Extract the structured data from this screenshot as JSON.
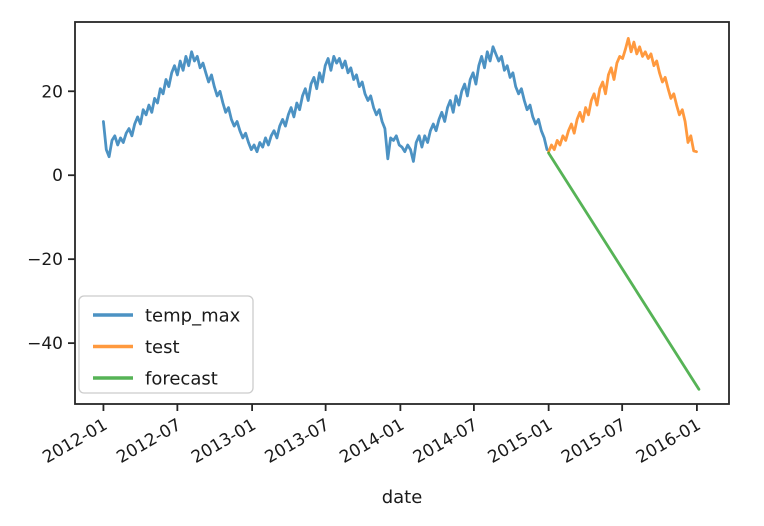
{
  "figure": {
    "background": "#ffffff",
    "axes_color": "#262626",
    "text_color": "#1a1a1a"
  },
  "chart_data": {
    "type": "line",
    "title": "",
    "xlabel": "date",
    "ylabel": "",
    "grid": false,
    "x_unit": "days since 2012-01-01",
    "xlim": [
      -70,
      1540
    ],
    "ylim": [
      -54.5,
      36.5
    ],
    "line_alpha": 0.8,
    "x_ticks": [
      {
        "value": 0,
        "label": "2012-01"
      },
      {
        "value": 182,
        "label": "2012-07"
      },
      {
        "value": 366,
        "label": "2013-01"
      },
      {
        "value": 547,
        "label": "2013-07"
      },
      {
        "value": 731,
        "label": "2014-01"
      },
      {
        "value": 912,
        "label": "2014-07"
      },
      {
        "value": 1096,
        "label": "2015-01"
      },
      {
        "value": 1277,
        "label": "2015-07"
      },
      {
        "value": 1461,
        "label": "2016-01"
      }
    ],
    "y_ticks": [
      {
        "value": 20,
        "label": "20"
      },
      {
        "value": 0,
        "label": "0"
      },
      {
        "value": -20,
        "label": "−20"
      },
      {
        "value": -40,
        "label": "−40"
      }
    ],
    "legend": {
      "position": "lower left",
      "entries": [
        {
          "label": "temp_max",
          "color": "#1f77b4"
        },
        {
          "label": "test",
          "color": "#ff7f0e"
        },
        {
          "label": "forecast",
          "color": "#2ca02c"
        }
      ]
    },
    "series": [
      {
        "name": "temp_max",
        "color": "#1f77b4",
        "x": [
          0,
          7,
          14,
          21,
          28,
          35,
          42,
          49,
          56,
          63,
          70,
          77,
          84,
          91,
          98,
          105,
          112,
          119,
          126,
          133,
          140,
          147,
          154,
          161,
          168,
          175,
          182,
          189,
          196,
          203,
          210,
          217,
          224,
          231,
          238,
          245,
          252,
          259,
          266,
          273,
          280,
          287,
          294,
          301,
          308,
          315,
          322,
          329,
          336,
          343,
          350,
          357,
          364,
          371,
          378,
          385,
          392,
          399,
          406,
          413,
          420,
          427,
          434,
          441,
          448,
          455,
          462,
          469,
          476,
          483,
          490,
          497,
          504,
          511,
          518,
          525,
          532,
          539,
          546,
          553,
          560,
          567,
          574,
          581,
          588,
          595,
          602,
          609,
          616,
          623,
          630,
          637,
          644,
          651,
          658,
          665,
          672,
          679,
          686,
          693,
          700,
          707,
          714,
          721,
          728,
          735,
          742,
          749,
          756,
          763,
          770,
          777,
          784,
          791,
          798,
          805,
          812,
          819,
          826,
          833,
          840,
          847,
          854,
          861,
          868,
          875,
          882,
          889,
          896,
          903,
          910,
          917,
          924,
          931,
          938,
          945,
          952,
          959,
          966,
          973,
          980,
          987,
          994,
          1001,
          1008,
          1015,
          1022,
          1029,
          1036,
          1043,
          1050,
          1057,
          1064,
          1071,
          1078,
          1085,
          1092
        ],
        "y": [
          12.8,
          6.1,
          4.4,
          8.3,
          9.4,
          7.2,
          8.9,
          7.8,
          10.0,
          11.1,
          9.4,
          12.2,
          13.9,
          12.2,
          15.6,
          14.4,
          16.7,
          15.0,
          18.3,
          17.2,
          20.6,
          19.4,
          22.8,
          21.1,
          24.4,
          26.1,
          23.9,
          27.2,
          25.0,
          28.3,
          26.1,
          29.4,
          27.2,
          28.3,
          25.6,
          26.7,
          24.4,
          22.2,
          23.9,
          21.1,
          18.9,
          20.0,
          17.2,
          15.0,
          16.1,
          13.3,
          11.7,
          12.8,
          10.6,
          8.9,
          10.0,
          7.8,
          6.1,
          7.2,
          5.6,
          7.8,
          6.7,
          8.9,
          7.2,
          9.4,
          10.6,
          8.9,
          11.7,
          13.3,
          11.7,
          14.4,
          16.1,
          13.9,
          17.2,
          15.6,
          18.9,
          20.6,
          17.8,
          21.7,
          23.3,
          20.6,
          24.4,
          22.2,
          26.1,
          27.8,
          25.0,
          28.3,
          26.7,
          27.8,
          25.6,
          27.2,
          24.4,
          25.6,
          22.8,
          23.9,
          21.1,
          22.2,
          19.4,
          17.8,
          18.9,
          16.1,
          14.4,
          15.6,
          12.8,
          11.1,
          3.9,
          8.9,
          8.3,
          9.4,
          7.2,
          6.7,
          5.6,
          7.2,
          6.1,
          3.3,
          7.8,
          9.4,
          6.7,
          9.4,
          7.8,
          10.6,
          12.2,
          10.6,
          13.3,
          15.0,
          12.8,
          16.1,
          17.8,
          15.0,
          18.9,
          16.7,
          20.0,
          21.7,
          18.9,
          22.8,
          24.4,
          21.7,
          26.1,
          28.3,
          25.6,
          29.4,
          27.2,
          30.6,
          28.9,
          27.2,
          28.3,
          25.0,
          26.1,
          23.3,
          24.4,
          21.1,
          19.4,
          20.6,
          17.8,
          15.6,
          16.7,
          13.9,
          12.2,
          13.3,
          10.6,
          8.9,
          6.1
        ]
      },
      {
        "name": "test",
        "color": "#ff7f0e",
        "x": [
          1096,
          1103,
          1110,
          1117,
          1124,
          1131,
          1138,
          1145,
          1152,
          1159,
          1166,
          1173,
          1180,
          1187,
          1194,
          1201,
          1208,
          1215,
          1222,
          1229,
          1236,
          1243,
          1250,
          1257,
          1264,
          1271,
          1278,
          1285,
          1292,
          1299,
          1306,
          1313,
          1320,
          1327,
          1334,
          1341,
          1348,
          1355,
          1362,
          1369,
          1376,
          1383,
          1390,
          1397,
          1404,
          1411,
          1418,
          1425,
          1432,
          1439,
          1446,
          1453,
          1460
        ],
        "y": [
          5.6,
          7.2,
          6.1,
          8.3,
          7.2,
          9.4,
          8.3,
          10.6,
          12.2,
          10.0,
          13.3,
          15.0,
          12.8,
          16.1,
          14.4,
          17.8,
          19.4,
          16.7,
          20.6,
          22.2,
          19.4,
          23.9,
          25.6,
          22.8,
          26.7,
          28.3,
          27.8,
          30.0,
          32.6,
          29.4,
          31.7,
          28.9,
          30.6,
          28.3,
          29.4,
          27.8,
          28.9,
          26.1,
          27.2,
          24.4,
          22.2,
          23.3,
          20.6,
          18.3,
          19.4,
          16.7,
          14.4,
          15.6,
          12.8,
          7.8,
          9.4,
          5.8,
          5.6
        ]
      },
      {
        "name": "forecast",
        "color": "#2ca02c",
        "x": [
          1096,
          1466
        ],
        "y": [
          5.3,
          -51.0
        ]
      }
    ]
  }
}
